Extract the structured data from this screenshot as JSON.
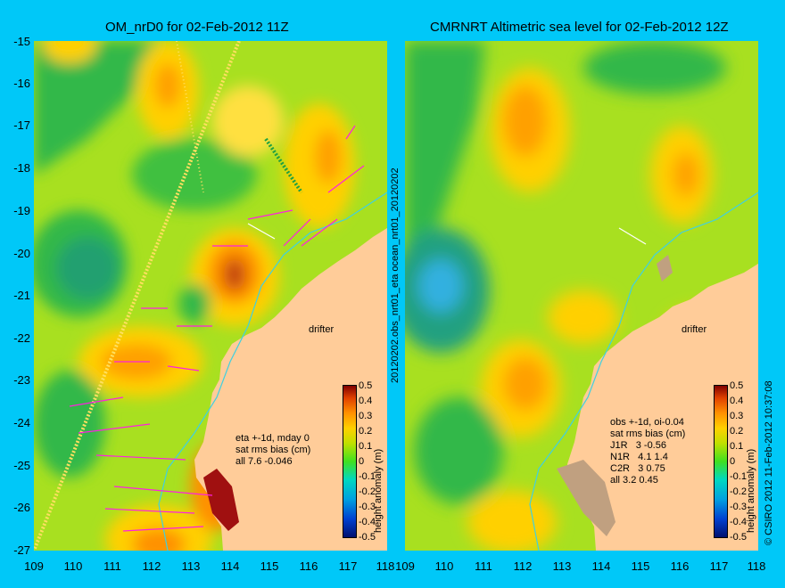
{
  "left": {
    "title": "OM_nrD0 for 02-Feb-2012 11Z",
    "stats": [
      "eta +-1d, mday 0",
      "sat rms bias (cm)",
      "all 7.6 -0.046"
    ]
  },
  "right": {
    "title": "CMRNRT Altimetric sea level  for 02-Feb-2012 12Z",
    "stats": [
      "obs +-1d, oi-0.04",
      "sat rms bias (cm)",
      "J1R   3 -0.56",
      "N1R   4.1 1.4",
      "C2R   3 0.75",
      "all 3.2 0.45"
    ]
  },
  "drifter_label": "drifter",
  "y_ticks": [
    "-15",
    "-16",
    "-17",
    "-18",
    "-19",
    "-20",
    "-21",
    "-22",
    "-23",
    "-24",
    "-25",
    "-26",
    "-27"
  ],
  "x_ticks": [
    "109",
    "110",
    "111",
    "112",
    "113",
    "114",
    "115",
    "116",
    "117",
    "118"
  ],
  "colorbar": {
    "label": "height anomaly (m)",
    "ticks": [
      "0.5",
      "0.4",
      "0.3",
      "0.2",
      "0.1",
      "0",
      "-0.1",
      "-0.2",
      "-0.3",
      "-0.4",
      "-0.5"
    ]
  },
  "middle_vertical_label": "20120202.obs_nrt01_eta          ocean_nrt01_20120202",
  "copyright": "© CSIRO 2012  11-Feb-2012 10:37:08",
  "colors": {
    "background": "#00c8f8",
    "land": "#ffcc99",
    "sea_base": "#a8e020"
  }
}
